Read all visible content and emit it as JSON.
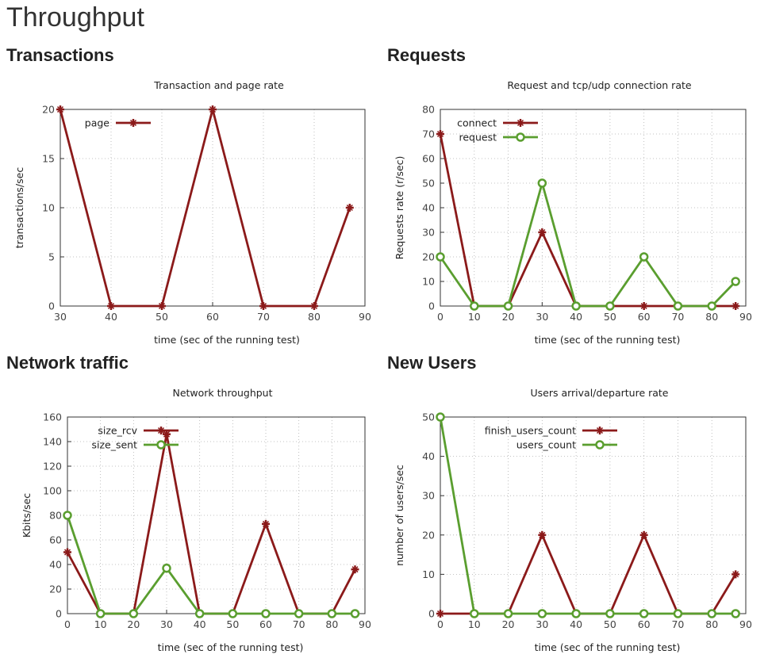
{
  "page": {
    "title": "Throughput"
  },
  "sections": [
    {
      "heading": "Transactions"
    },
    {
      "heading": "Requests"
    },
    {
      "heading": "Network traffic"
    },
    {
      "heading": "New Users"
    }
  ],
  "chart_data": [
    {
      "type": "line",
      "title": "Transaction and page rate",
      "xlabel": "time (sec of the running test)",
      "ylabel": "transactions/sec",
      "xlim": [
        30,
        90
      ],
      "ylim": [
        0,
        20
      ],
      "xticks": [
        30,
        40,
        50,
        60,
        70,
        80,
        90
      ],
      "yticks": [
        0,
        5,
        10,
        15,
        20
      ],
      "grid": true,
      "legend": "top-left",
      "series": [
        {
          "name": "page",
          "color": "#8b1a1a",
          "marker": "plus",
          "x": [
            30,
            40,
            50,
            60,
            70,
            80,
            87
          ],
          "y": [
            20,
            0,
            0,
            20,
            0,
            0,
            10
          ]
        }
      ]
    },
    {
      "type": "line",
      "title": "Request and tcp/udp connection rate",
      "xlabel": "time (sec of the running test)",
      "ylabel": "Requests rate (r/sec)",
      "xlim": [
        0,
        90
      ],
      "ylim": [
        0,
        80
      ],
      "xticks": [
        0,
        10,
        20,
        30,
        40,
        50,
        60,
        70,
        80,
        90
      ],
      "yticks": [
        0,
        10,
        20,
        30,
        40,
        50,
        60,
        70,
        80
      ],
      "grid": true,
      "legend": "top-left",
      "series": [
        {
          "name": "connect",
          "color": "#8b1a1a",
          "marker": "plus",
          "x": [
            0,
            10,
            20,
            30,
            40,
            50,
            60,
            70,
            80,
            87
          ],
          "y": [
            70,
            0,
            0,
            30,
            0,
            0,
            0,
            0,
            0,
            0
          ]
        },
        {
          "name": "request",
          "color": "#5a9e2f",
          "marker": "circle",
          "x": [
            0,
            10,
            20,
            30,
            40,
            50,
            60,
            70,
            80,
            87
          ],
          "y": [
            20,
            0,
            0,
            50,
            0,
            0,
            20,
            0,
            0,
            10
          ]
        }
      ]
    },
    {
      "type": "line",
      "title": "Network throughput",
      "xlabel": "time (sec of the running test)",
      "ylabel": "Kbits/sec",
      "xlim": [
        0,
        90
      ],
      "ylim": [
        0,
        160
      ],
      "xticks": [
        0,
        10,
        20,
        30,
        40,
        50,
        60,
        70,
        80,
        90
      ],
      "yticks": [
        0,
        20,
        40,
        60,
        80,
        100,
        120,
        140,
        160
      ],
      "grid": true,
      "legend": "top-center",
      "series": [
        {
          "name": "size_rcv",
          "color": "#8b1a1a",
          "marker": "plus",
          "x": [
            0,
            10,
            20,
            30,
            40,
            50,
            60,
            70,
            80,
            87
          ],
          "y": [
            50,
            0,
            0,
            146,
            0,
            0,
            73,
            0,
            0,
            36
          ]
        },
        {
          "name": "size_sent",
          "color": "#5a9e2f",
          "marker": "circle",
          "x": [
            0,
            10,
            20,
            30,
            40,
            50,
            60,
            70,
            80,
            87
          ],
          "y": [
            80,
            0,
            0,
            37,
            0,
            0,
            0,
            0,
            0,
            0
          ]
        }
      ]
    },
    {
      "type": "line",
      "title": "Users arrival/departure rate",
      "xlabel": "time (sec of the running test)",
      "ylabel": "number of users/sec",
      "xlim": [
        0,
        90
      ],
      "ylim": [
        0,
        50
      ],
      "xticks": [
        0,
        10,
        20,
        30,
        40,
        50,
        60,
        70,
        80,
        90
      ],
      "yticks": [
        0,
        10,
        20,
        30,
        40,
        50
      ],
      "grid": true,
      "legend": "top-left",
      "series": [
        {
          "name": "finish_users_count",
          "color": "#8b1a1a",
          "marker": "plus",
          "x": [
            0,
            10,
            20,
            30,
            40,
            50,
            60,
            70,
            80,
            87
          ],
          "y": [
            0,
            0,
            0,
            20,
            0,
            0,
            20,
            0,
            0,
            10
          ]
        },
        {
          "name": "users_count",
          "color": "#5a9e2f",
          "marker": "circle",
          "x": [
            0,
            10,
            20,
            30,
            40,
            50,
            60,
            70,
            80,
            87
          ],
          "y": [
            50,
            0,
            0,
            0,
            0,
            0,
            0,
            0,
            0,
            0
          ]
        }
      ]
    }
  ]
}
